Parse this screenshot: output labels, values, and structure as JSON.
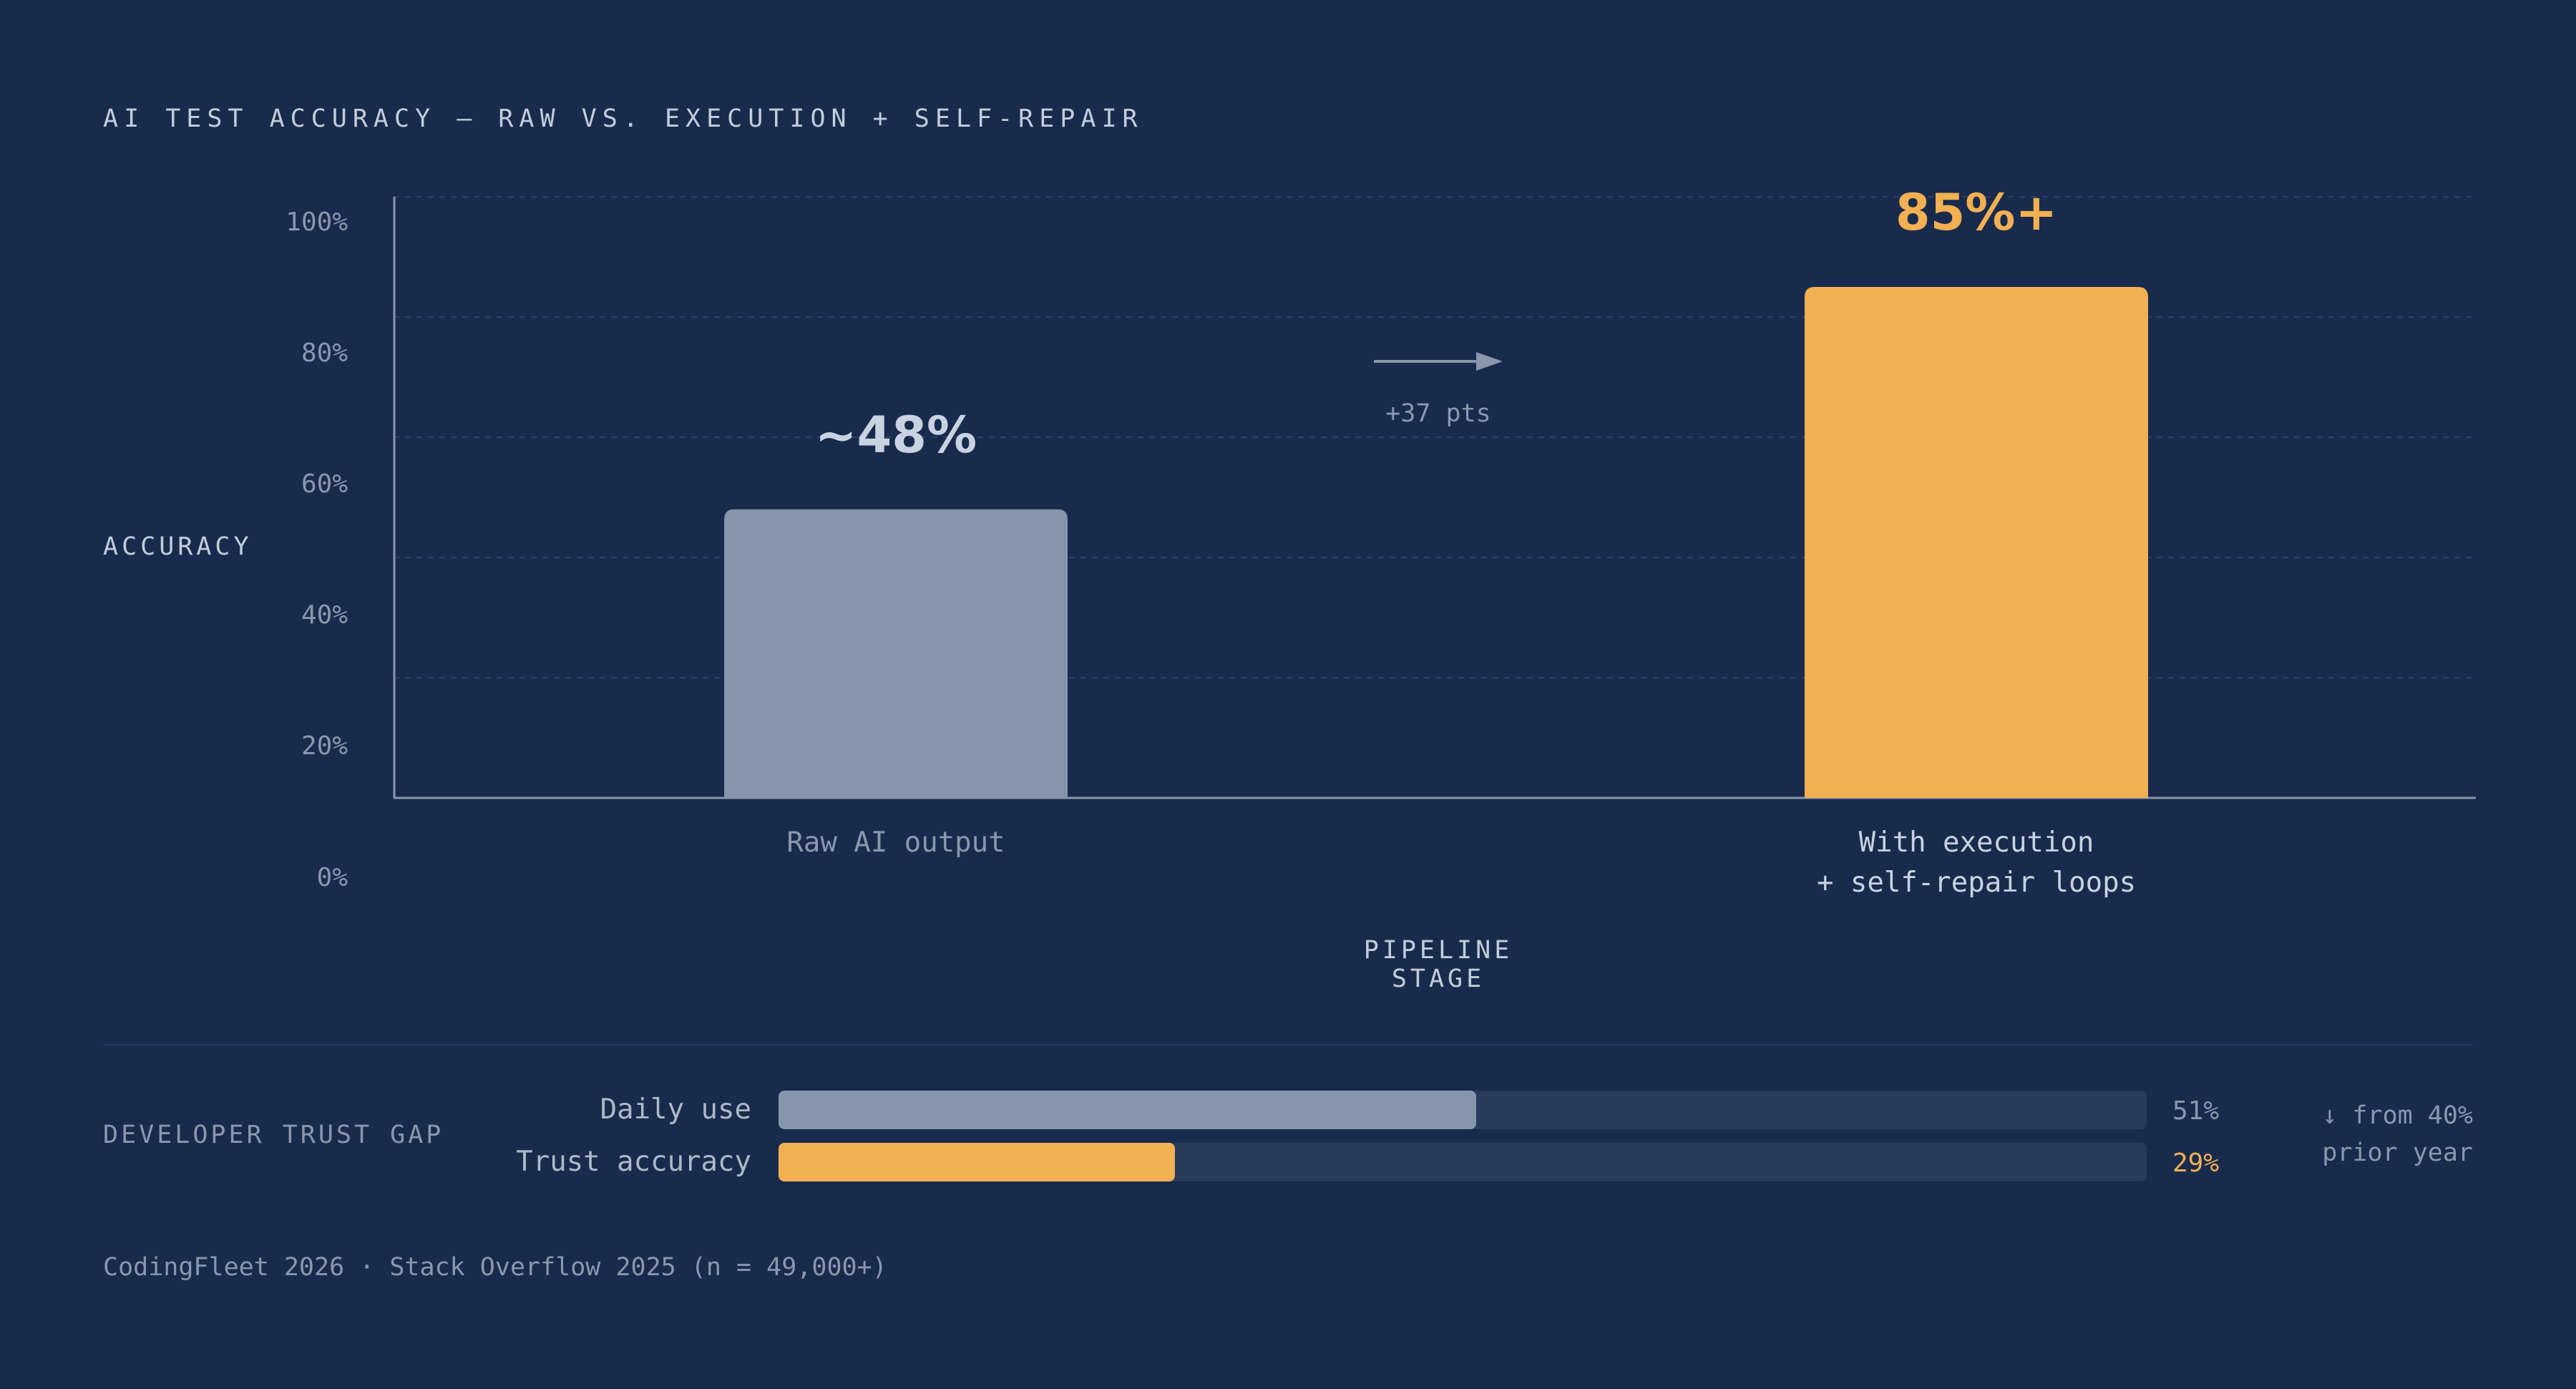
{
  "chart_data": {
    "type": "bar",
    "title": "AI TEST ACCURACY — RAW VS. EXECUTION + SELF-REPAIR",
    "xlabel": "PIPELINE STAGE",
    "ylabel": "ACCURACY",
    "ylim": [
      0,
      100
    ],
    "yticks": [
      "100%",
      "80%",
      "60%",
      "40%",
      "20%",
      "0%"
    ],
    "grid": true,
    "categories": [
      [
        "Raw AI output"
      ],
      [
        "With execution",
        "+ self-repair loops"
      ]
    ],
    "values": [
      48,
      85
    ],
    "value_labels": [
      "~48%",
      "85%+"
    ],
    "colors": [
      "#8795ac",
      "#f2b052"
    ],
    "label_colors": [
      "#c8d2e1",
      "#f2b052"
    ],
    "category_label_colors": [
      "#8a97ad",
      "#c8d2e1"
    ],
    "annotation": "+37 pts"
  },
  "trust_gap": {
    "title": "DEVELOPER TRUST GAP",
    "rows": [
      {
        "label": "Daily use",
        "value": 51,
        "display": "51%",
        "color": "#8795ac",
        "value_color": "#8a97ad"
      },
      {
        "label": "Trust accuracy",
        "value": 29,
        "display": "29%",
        "color": "#f2b052",
        "value_color": "#f2b052"
      }
    ],
    "note_line1": "↓ from 40%",
    "note_line2": "prior year"
  },
  "source": "CodingFleet 2026 · Stack Overflow 2025 (n = 49,000+)",
  "colors": {
    "background": "#182b4c",
    "axis": "#8a97ad",
    "grid": "#2c4266",
    "track": "#273b5d"
  }
}
